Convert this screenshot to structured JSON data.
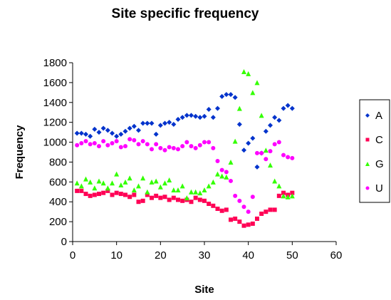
{
  "chart_data": {
    "type": "scatter",
    "title": "Site specific frequency",
    "xlabel": "Site",
    "ylabel": "Frequency",
    "xlim": [
      0,
      60
    ],
    "ylim": [
      0,
      1800
    ],
    "x_ticks": [
      0,
      10,
      20,
      30,
      40,
      50,
      60
    ],
    "y_ticks": [
      0,
      200,
      400,
      600,
      800,
      1000,
      1200,
      1400,
      1600,
      1800
    ],
    "x_tick_labels": [
      "0",
      "10",
      "20",
      "30",
      "40",
      "50",
      "60"
    ],
    "y_tick_labels": [
      "0",
      "200",
      "400",
      "600",
      "800",
      "1000",
      "1200",
      "1400",
      "1600",
      "1800"
    ],
    "grid": false,
    "legend_position": "right",
    "series": [
      {
        "name": "A",
        "marker": "diamond",
        "color": "#0033cc",
        "x": [
          1,
          2,
          3,
          4,
          5,
          6,
          7,
          8,
          9,
          10,
          11,
          12,
          13,
          14,
          15,
          16,
          17,
          18,
          19,
          20,
          21,
          22,
          23,
          24,
          25,
          26,
          27,
          28,
          29,
          30,
          31,
          32,
          33,
          34,
          35,
          36,
          37,
          38,
          39,
          40,
          41,
          42,
          43,
          44,
          45,
          46,
          47,
          48,
          49,
          50
        ],
        "y": [
          1090,
          1090,
          1080,
          1060,
          1130,
          1100,
          1140,
          1120,
          1090,
          1060,
          1080,
          1110,
          1140,
          1160,
          1120,
          1190,
          1190,
          1190,
          1080,
          1170,
          1190,
          1200,
          1180,
          1230,
          1250,
          1270,
          1270,
          1260,
          1250,
          1260,
          1330,
          1250,
          1340,
          1460,
          1480,
          1480,
          1450,
          1180,
          920,
          990,
          1040,
          750,
          890,
          1110,
          1170,
          1250,
          1220,
          1340,
          1370,
          1340
        ]
      },
      {
        "name": "C",
        "marker": "square",
        "color": "#ff0055",
        "x": [
          1,
          2,
          3,
          4,
          5,
          6,
          7,
          8,
          9,
          10,
          11,
          12,
          13,
          14,
          15,
          16,
          17,
          18,
          19,
          20,
          21,
          22,
          23,
          24,
          25,
          26,
          27,
          28,
          29,
          30,
          31,
          32,
          33,
          34,
          35,
          36,
          37,
          38,
          39,
          40,
          41,
          42,
          43,
          44,
          45,
          46,
          47,
          48,
          49,
          50
        ],
        "y": [
          510,
          510,
          480,
          460,
          470,
          480,
          490,
          510,
          470,
          490,
          480,
          470,
          450,
          470,
          400,
          410,
          470,
          440,
          460,
          440,
          450,
          420,
          440,
          420,
          410,
          420,
          400,
          440,
          420,
          410,
          380,
          360,
          330,
          310,
          320,
          220,
          230,
          200,
          160,
          170,
          180,
          230,
          280,
          300,
          320,
          320,
          460,
          490,
          470,
          490
        ]
      },
      {
        "name": "G",
        "marker": "triangle",
        "color": "#33ff00",
        "x": [
          1,
          2,
          3,
          4,
          5,
          6,
          7,
          8,
          9,
          10,
          11,
          12,
          13,
          14,
          15,
          16,
          17,
          18,
          19,
          20,
          21,
          22,
          23,
          24,
          25,
          26,
          27,
          28,
          29,
          30,
          31,
          32,
          33,
          34,
          35,
          36,
          37,
          38,
          39,
          40,
          41,
          42,
          43,
          44,
          45,
          46,
          47,
          48,
          49,
          50
        ],
        "y": [
          590,
          560,
          630,
          600,
          540,
          610,
          590,
          540,
          590,
          680,
          570,
          600,
          640,
          520,
          560,
          640,
          500,
          600,
          610,
          550,
          590,
          620,
          520,
          520,
          560,
          440,
          500,
          500,
          490,
          520,
          560,
          600,
          680,
          660,
          650,
          800,
          1010,
          1340,
          1710,
          1690,
          1500,
          1600,
          1270,
          920,
          770,
          610,
          560,
          460,
          450,
          460
        ]
      },
      {
        "name": "U",
        "marker": "circle",
        "color": "#ff00ff",
        "x": [
          1,
          2,
          3,
          4,
          5,
          6,
          7,
          8,
          9,
          10,
          11,
          12,
          13,
          14,
          15,
          16,
          17,
          18,
          19,
          20,
          21,
          22,
          23,
          24,
          25,
          26,
          27,
          28,
          29,
          30,
          31,
          32,
          33,
          34,
          35,
          36,
          37,
          38,
          39,
          40,
          41,
          42,
          43,
          44,
          45,
          46,
          47,
          48,
          49,
          50
        ],
        "y": [
          970,
          990,
          1010,
          980,
          990,
          960,
          1010,
          970,
          990,
          1010,
          950,
          960,
          1030,
          1020,
          980,
          1010,
          980,
          930,
          980,
          940,
          920,
          950,
          940,
          930,
          960,
          1000,
          960,
          940,
          970,
          1000,
          1000,
          940,
          810,
          720,
          700,
          610,
          460,
          410,
          350,
          300,
          450,
          890,
          890,
          830,
          910,
          980,
          1000,
          870,
          850,
          840
        ]
      }
    ]
  }
}
